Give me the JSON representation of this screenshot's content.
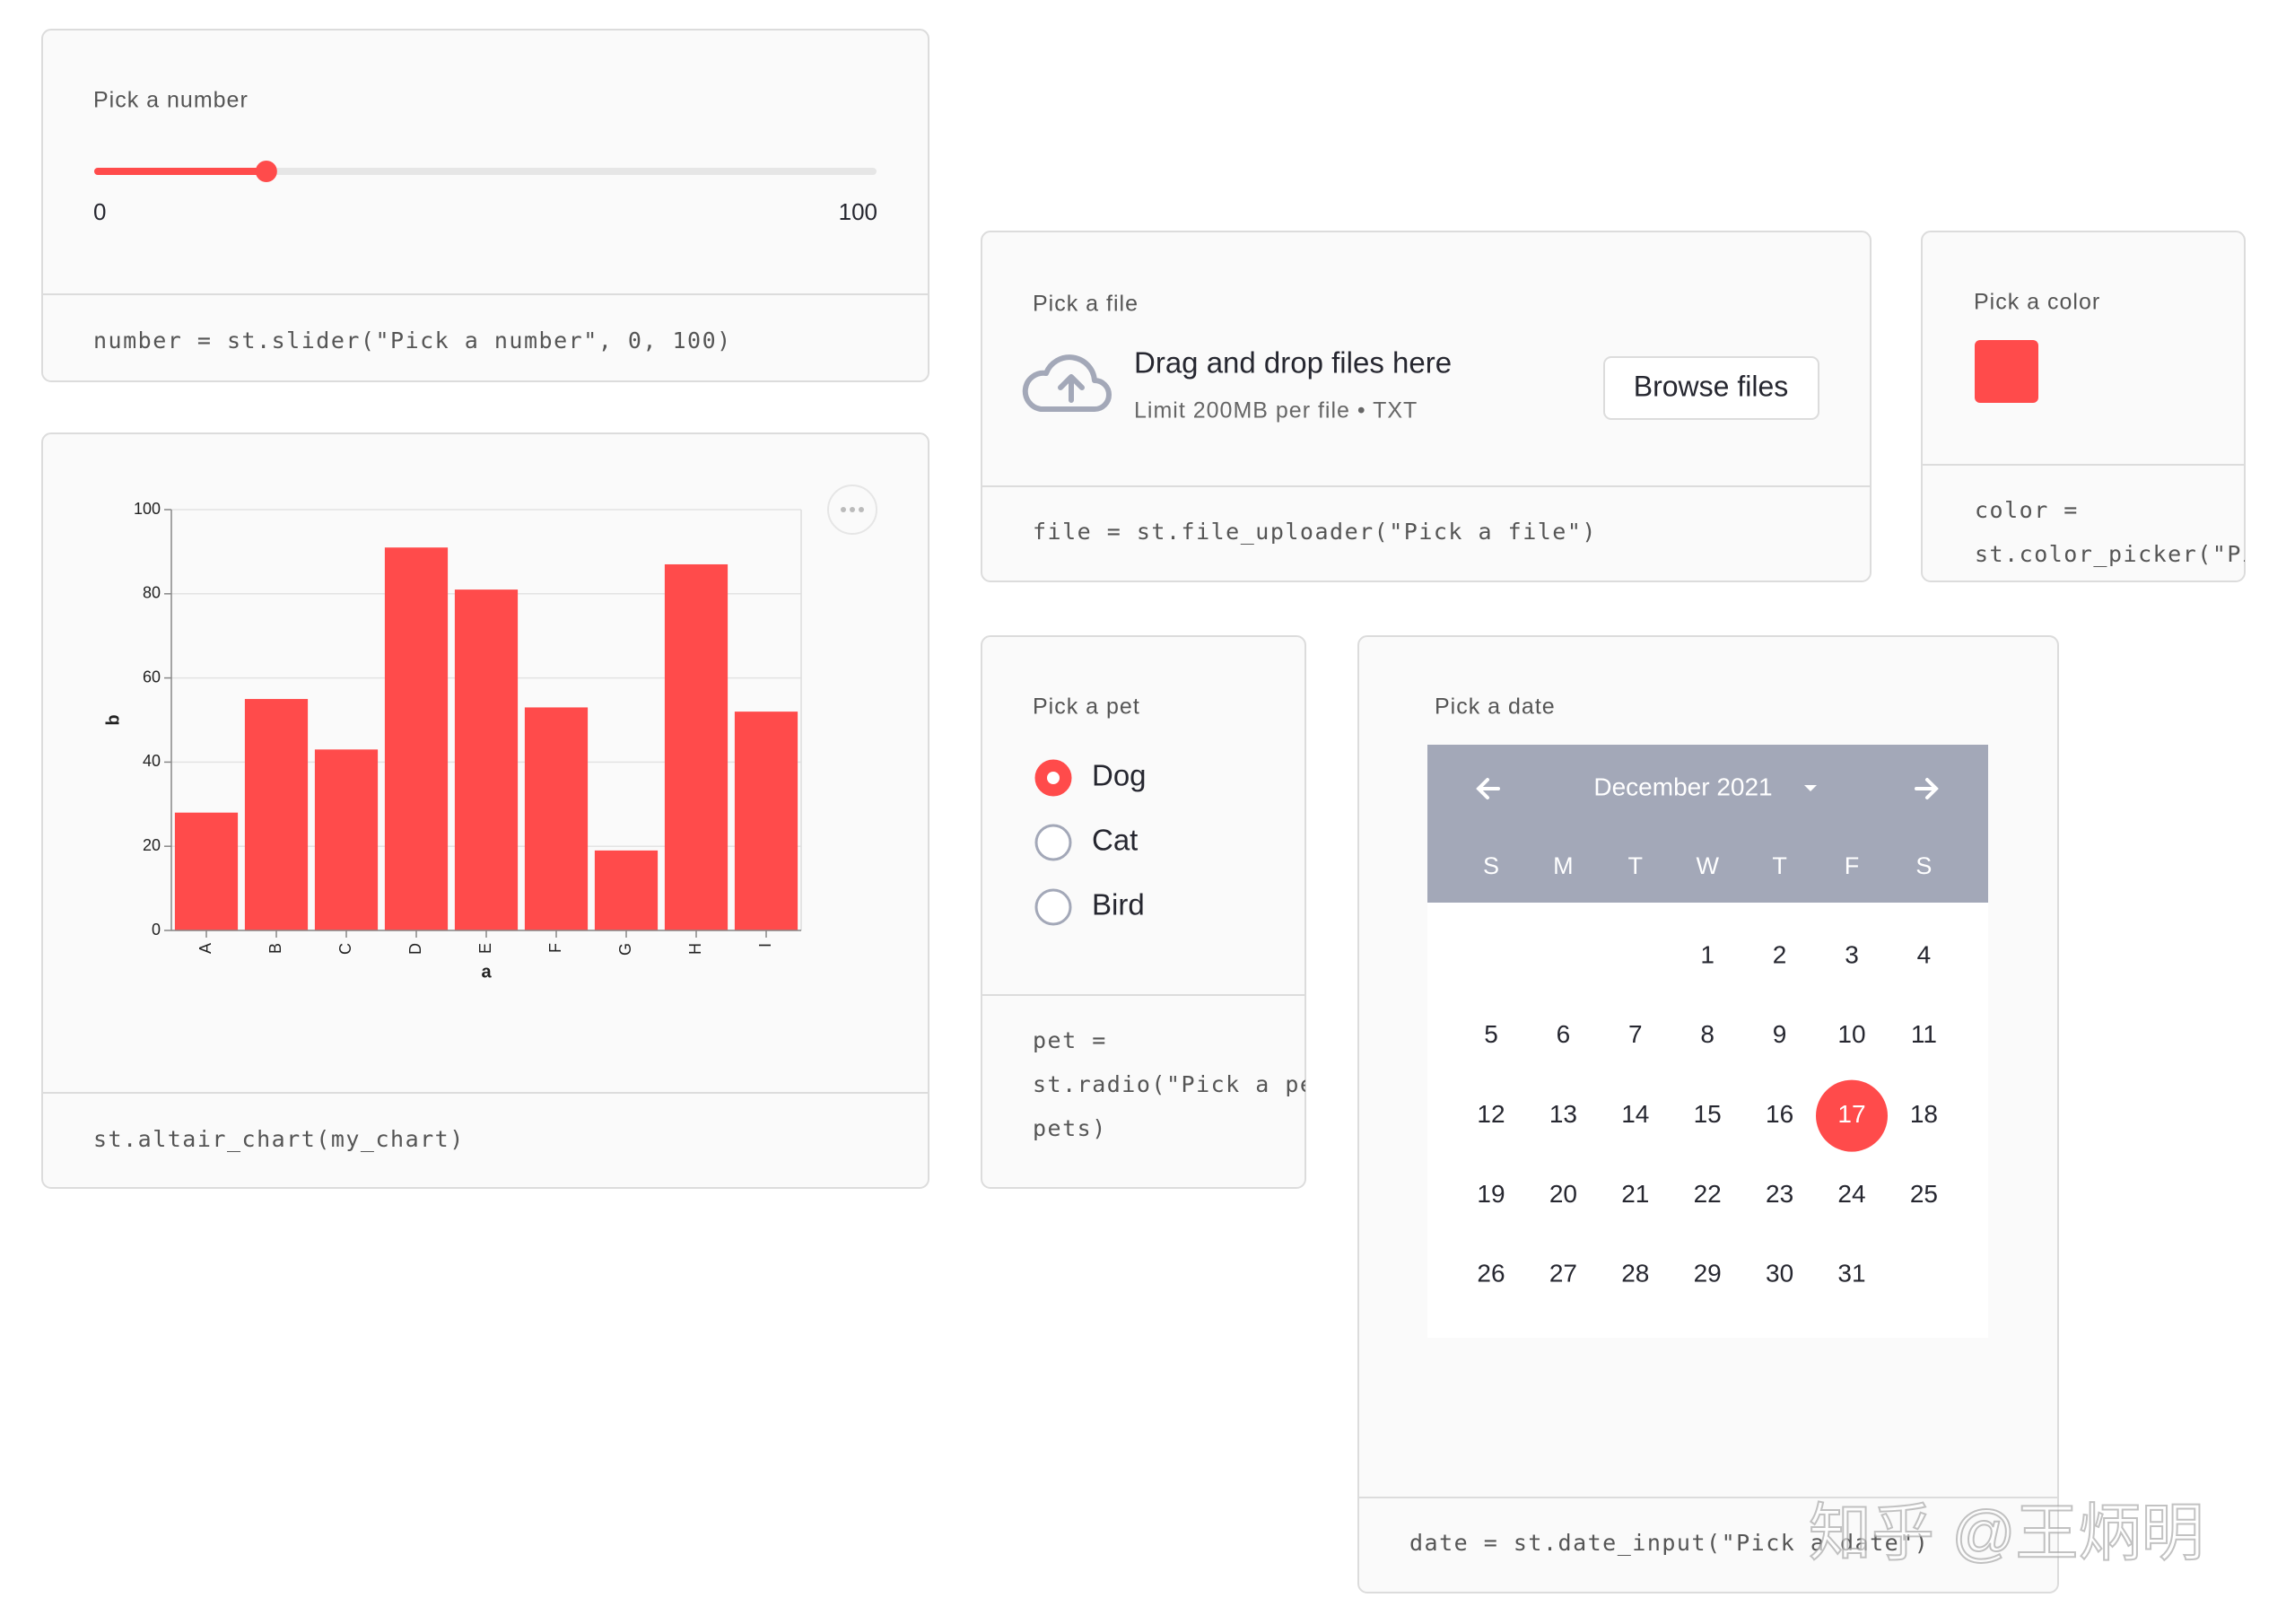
{
  "slider_panel": {
    "label": "Pick a number",
    "min": 0,
    "max": 100,
    "value": 22,
    "code": "number = st.slider(\"Pick a number\", 0, 100)"
  },
  "chart_panel": {
    "code": "st.altair_chart(my_chart)"
  },
  "chart_data": {
    "type": "bar",
    "categories": [
      "A",
      "B",
      "C",
      "D",
      "E",
      "F",
      "G",
      "H",
      "I"
    ],
    "values": [
      28,
      55,
      43,
      91,
      81,
      53,
      19,
      87,
      52
    ],
    "color": "#ff4b4b",
    "x_label": "a",
    "y_label": "b",
    "ylim": [
      0,
      100
    ],
    "yticks": [
      0,
      20,
      40,
      60,
      80,
      100
    ],
    "grid": true
  },
  "file_panel": {
    "label": "Pick a file",
    "prompt": "Drag and drop files here",
    "limit": "Limit 200MB per file • TXT",
    "button": "Browse files",
    "code": "file = st.file_uploader(\"Pick a file\")"
  },
  "color_panel": {
    "label": "Pick a color",
    "color": "#ff4b4b",
    "code": [
      "color =",
      "st.color_picker(\"Pi"
    ]
  },
  "radio_panel": {
    "label": "Pick a pet",
    "options": [
      "Dog",
      "Cat",
      "Bird"
    ],
    "selected": "Dog",
    "code": [
      "pet =",
      "st.radio(\"Pick a pe",
      "pets)"
    ]
  },
  "date_panel": {
    "label": "Pick a date",
    "month": "December 2021",
    "weekdays": [
      "S",
      "M",
      "T",
      "W",
      "T",
      "F",
      "S"
    ],
    "weeks": [
      [
        null,
        null,
        null,
        1,
        2,
        3,
        4
      ],
      [
        5,
        6,
        7,
        8,
        9,
        10,
        11
      ],
      [
        12,
        13,
        14,
        15,
        16,
        17,
        18
      ],
      [
        19,
        20,
        21,
        22,
        23,
        24,
        25
      ],
      [
        26,
        27,
        28,
        29,
        30,
        31,
        null
      ]
    ],
    "selected": 17,
    "code": "date = st.date_input(\"Pick a date\")"
  },
  "watermark": "知乎 @王炳明"
}
